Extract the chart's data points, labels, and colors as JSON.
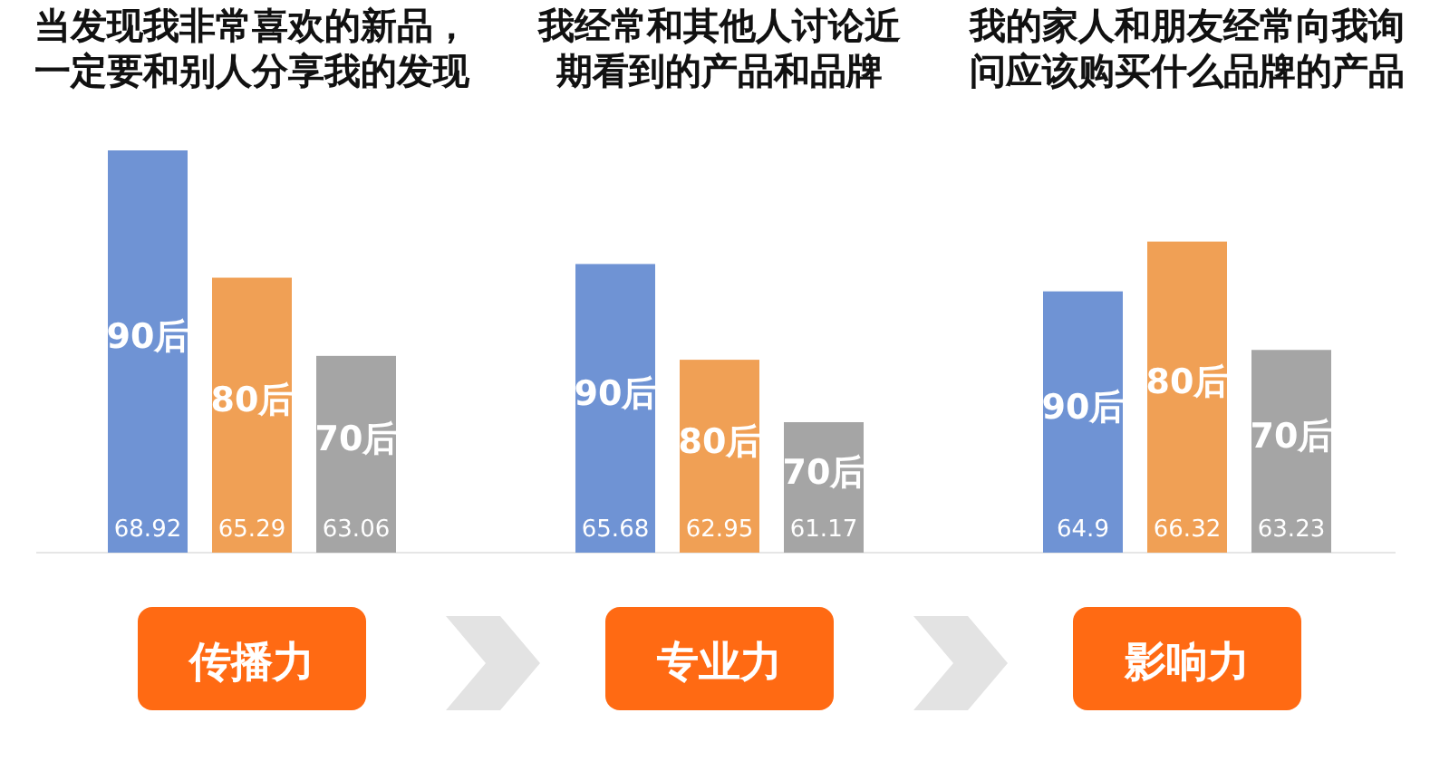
{
  "chart_data": {
    "type": "bar",
    "categories": [
      "传播力",
      "专业力",
      "影响力"
    ],
    "series": [
      {
        "name": "90后",
        "color": "#6f93d4",
        "values": [
          68.92,
          65.68,
          64.9
        ]
      },
      {
        "name": "80后",
        "color": "#f0a055",
        "values": [
          65.29,
          62.95,
          66.32
        ]
      },
      {
        "name": "70后",
        "color": "#a5a5a5",
        "values": [
          63.06,
          61.17,
          63.23
        ]
      }
    ],
    "ylim": [
      57.45,
      68.92
    ],
    "data_labels": true,
    "legend": false,
    "tick_labels": false,
    "annotations": [
      "当发现我非常喜欢的新品，一定要和别人分享我的发现",
      "我经常和其他人讨论近期看到的产品和品牌",
      "我的家人和朋友经常向我询问应该购买什么品牌的产品"
    ]
  }
}
